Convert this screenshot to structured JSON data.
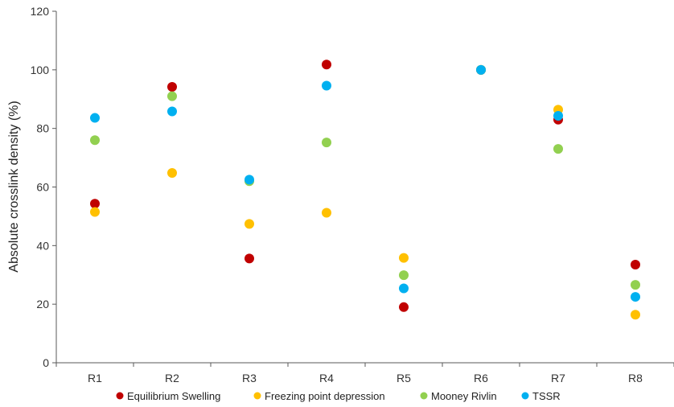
{
  "chart_data": {
    "type": "scatter",
    "title": "",
    "xlabel": "",
    "ylabel": "Absolute crosslink density (%)",
    "ylim": [
      0,
      120
    ],
    "yticks": [
      0,
      20,
      40,
      60,
      80,
      100,
      120
    ],
    "grid": false,
    "legend_position": "bottom",
    "categories": [
      "R1",
      "R2",
      "R3",
      "R4",
      "R5",
      "R6",
      "R7",
      "R8"
    ],
    "series": [
      {
        "name": "Equilibrium Swelling",
        "color": "#c00000",
        "values": [
          54.3,
          94.2,
          35.6,
          101.8,
          19.0,
          100.0,
          83.0,
          33.5
        ]
      },
      {
        "name": "Freezing point depression",
        "color": "#ffc000",
        "values": [
          51.5,
          64.8,
          47.4,
          51.2,
          35.8,
          100.0,
          86.4,
          16.4
        ]
      },
      {
        "name": "Mooney Rivlin",
        "color": "#92d050",
        "values": [
          76.0,
          91.0,
          62.0,
          75.2,
          29.9,
          100.0,
          73.0,
          26.6
        ]
      },
      {
        "name": "TSSR",
        "color": "#00b0f0",
        "values": [
          83.6,
          85.8,
          62.5,
          94.6,
          25.4,
          100.0,
          84.3,
          22.5
        ]
      }
    ]
  }
}
